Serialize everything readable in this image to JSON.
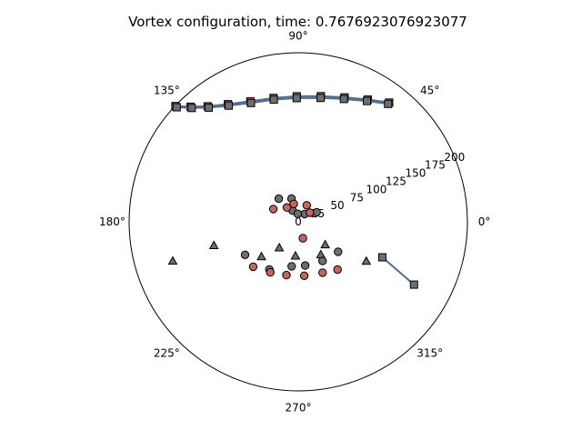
{
  "chart_data": {
    "type": "scatter",
    "projection": "polar",
    "title": "Vortex configuration, time: 0.7676923076923077",
    "rlim": [
      0,
      200
    ],
    "radial_ticks": [
      "0",
      "25",
      "50",
      "75",
      "100",
      "125",
      "150",
      "175",
      "200"
    ],
    "radial_tick_values": [
      0,
      25,
      50,
      75,
      100,
      125,
      150,
      175,
      200
    ],
    "radial_label_angle_deg": 22.5,
    "angle_ticks": [
      "0°",
      "45°",
      "90°",
      "135°",
      "180°",
      "225°",
      "270°",
      "315°"
    ],
    "angle_tick_values": [
      0,
      45,
      90,
      135,
      180,
      225,
      270,
      315
    ],
    "grid": false,
    "colors": {
      "red": "#c8645a",
      "gray": "#6e6e6e",
      "line": "#4e6e94",
      "edge": "#000000"
    },
    "series": [
      {
        "marker": "square",
        "color": "#c8645a",
        "connected": true,
        "points": [
          [
            136.7,
            199.6
          ],
          [
            133.1,
            186.4
          ],
          [
            128.1,
            173.7
          ],
          [
            120.9,
            162.1
          ],
          [
            111.7,
            153.4
          ],
          [
            101.3,
            149.5
          ],
          [
            90.7,
            148.5
          ],
          [
            79.8,
            151.0
          ],
          [
            69.6,
            157.1
          ],
          [
            60.4,
            166.3
          ],
          [
            52.7,
            177.4
          ]
        ]
      },
      {
        "marker": "square",
        "color": "#6e6e6e",
        "connected": true,
        "points": [
          [
            136.7,
            197.5
          ],
          [
            133.1,
            184.4
          ],
          [
            128.1,
            171.6
          ],
          [
            120.9,
            160.1
          ],
          [
            111.7,
            151.3
          ],
          [
            101.3,
            147.4
          ],
          [
            90.7,
            146.4
          ],
          [
            79.8,
            148.9
          ],
          [
            69.6,
            155.0
          ],
          [
            60.4,
            164.3
          ],
          [
            52.7,
            175.3
          ]
        ]
      },
      {
        "marker": "square",
        "color": "#6e6e6e",
        "connected": true,
        "points": [
          [
            331.5,
            155.7
          ],
          [
            337.1,
            107.8
          ]
        ]
      },
      {
        "marker": "triangle",
        "color": "#6e6e6e",
        "connected": false,
        "points": [
          [
            197.3,
            155.4
          ],
          [
            195.6,
            103.6
          ],
          [
            223.3,
            59.8
          ],
          [
            265.3,
            40.4
          ],
          [
            304.6,
            47.0
          ],
          [
            330.0,
            92.9
          ],
          [
            233.7,
            37.9
          ],
          [
            319.8,
            41.7
          ]
        ]
      },
      {
        "marker": "circle",
        "color": "#6e6e6e",
        "connected": false,
        "points": [
          [
            106.2,
            28.5
          ],
          [
            130.1,
            35.7
          ],
          [
            116.6,
            14.8
          ],
          [
            51.3,
            11.8
          ],
          [
            27.7,
            24.5
          ],
          [
            93.6,
            9.5
          ],
          [
            211.8,
            74.0
          ],
          [
            238.7,
            65.9
          ],
          [
            261.5,
            53.2
          ],
          [
            279.0,
            52.4
          ],
          [
            301.8,
            54.5
          ],
          [
            323.1,
            58.9
          ]
        ]
      },
      {
        "marker": "circle",
        "color": "#c8645a",
        "connected": false,
        "points": [
          [
            152.8,
            33.1
          ],
          [
            128.3,
            21.6
          ],
          [
            104.2,
            21.8
          ],
          [
            38.3,
            17.6
          ],
          [
            63.0,
            22.0
          ],
          [
            285.8,
            20.1
          ],
          [
            224.9,
            75.3
          ],
          [
            241.0,
            68.4
          ],
          [
            257.5,
            64.5
          ],
          [
            276.3,
            64.2
          ],
          [
            295.5,
            66.6
          ],
          [
            309.4,
            73.1
          ]
        ]
      }
    ]
  }
}
